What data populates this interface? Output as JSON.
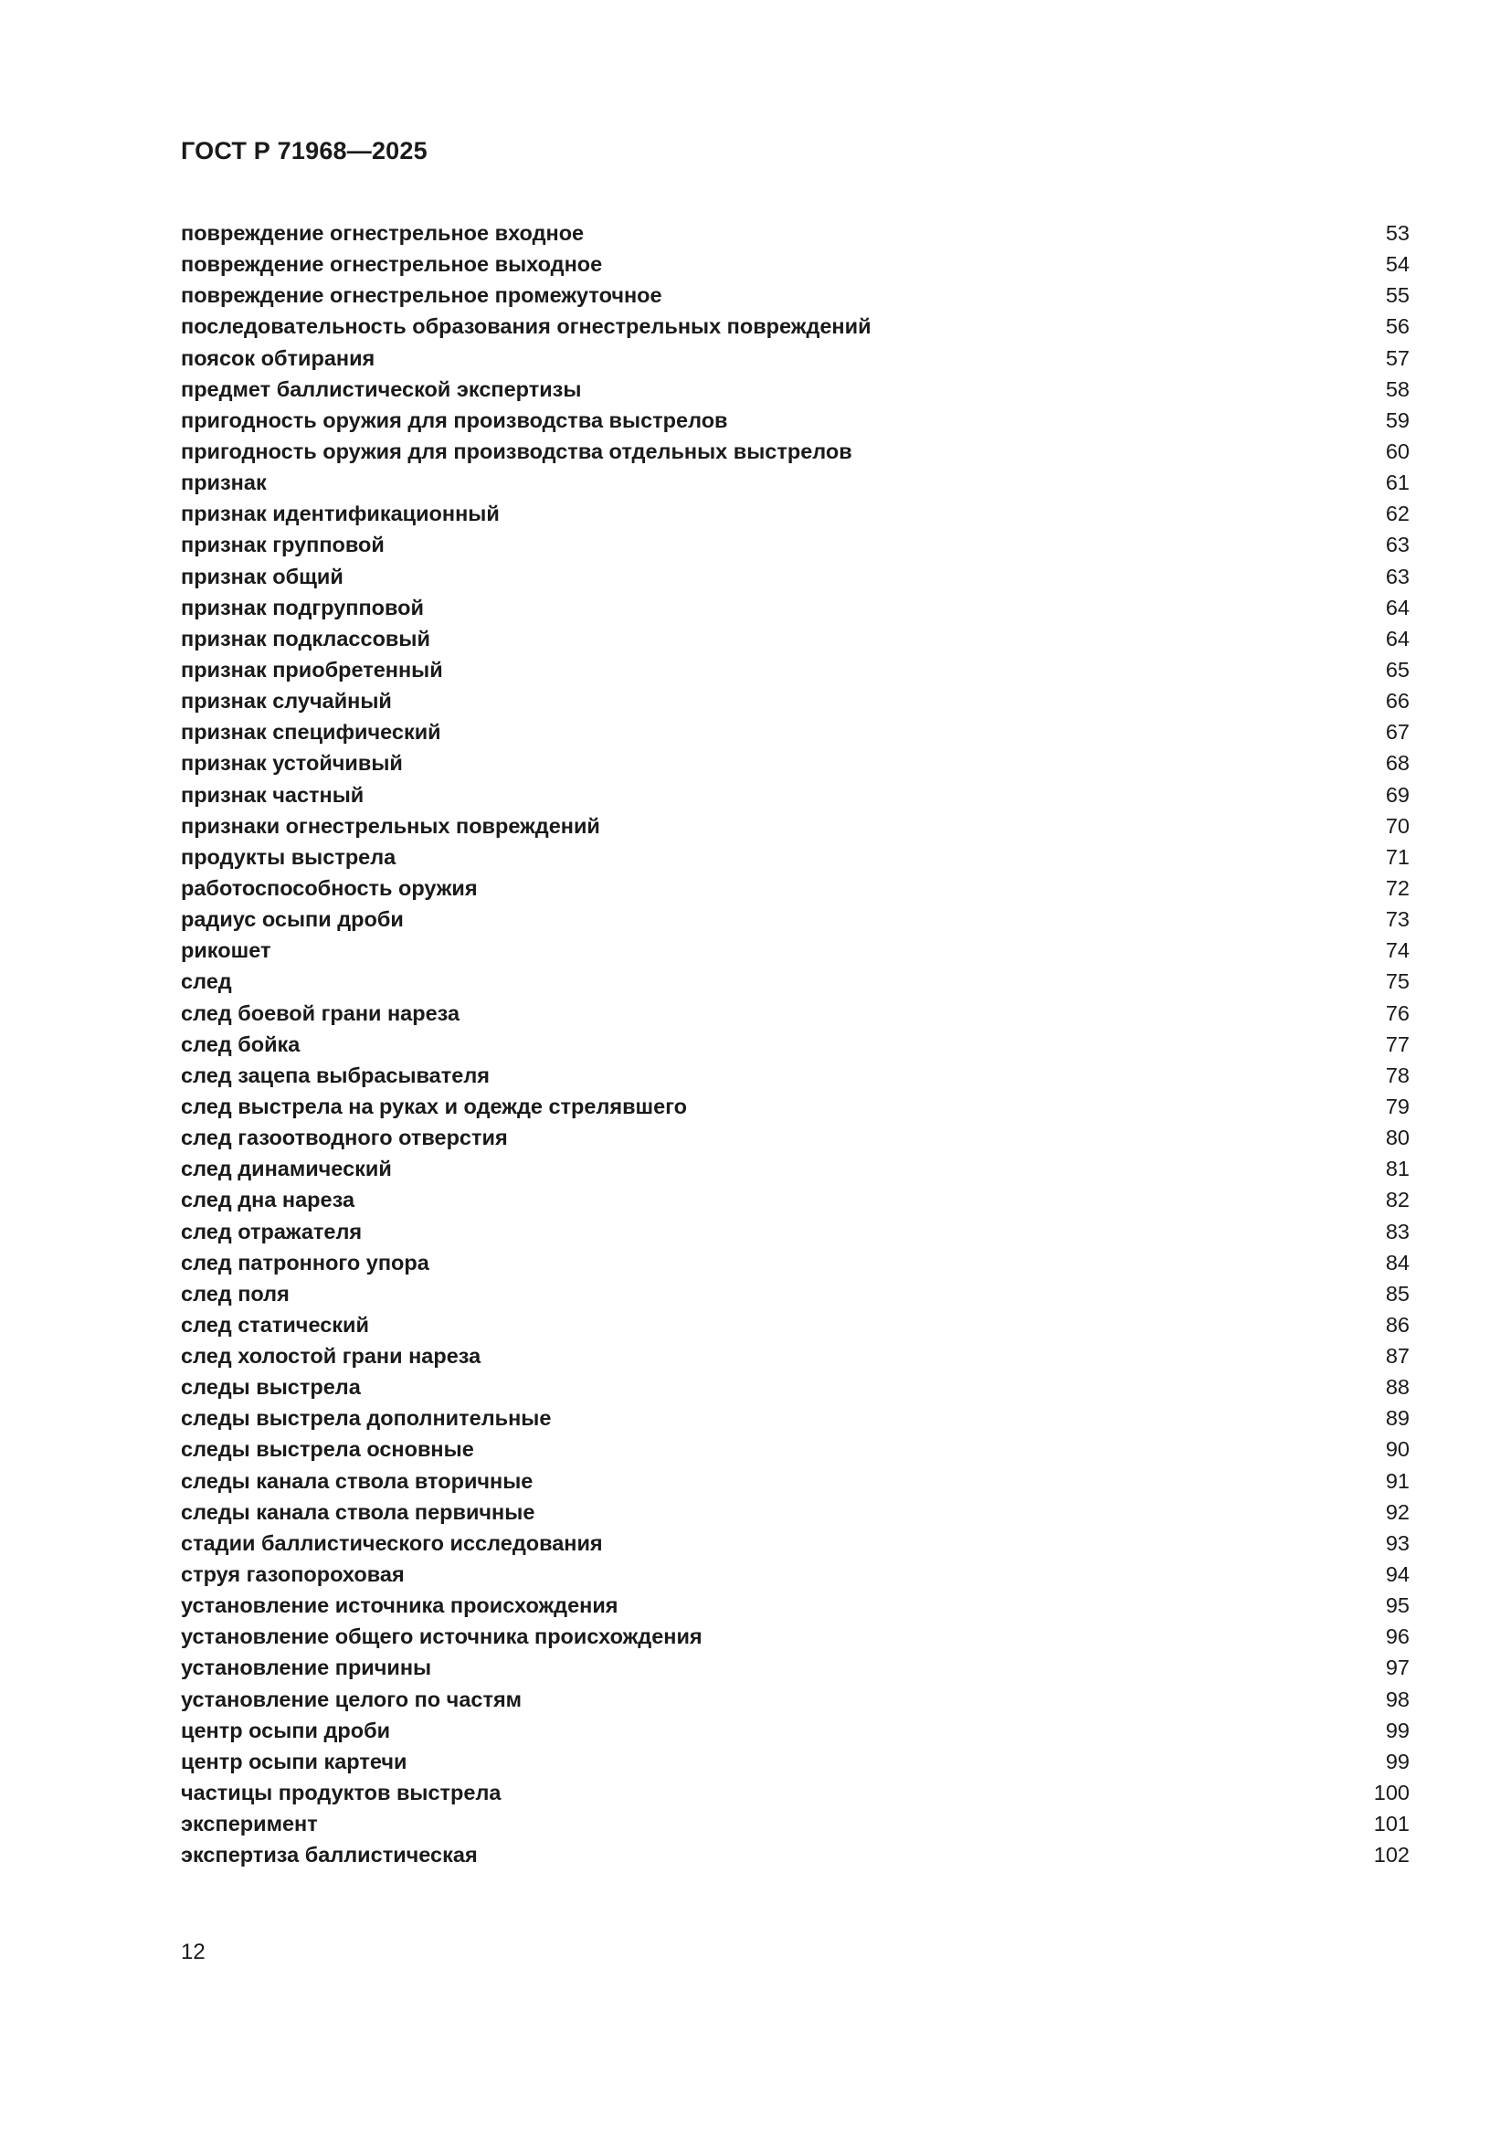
{
  "header": {
    "title": "ГОСТ Р 71968—2025"
  },
  "entries": [
    {
      "term": "повреждение огнестрельное входное",
      "page": "53"
    },
    {
      "term": "повреждение огнестрельное выходное",
      "page": "54"
    },
    {
      "term": "повреждение огнестрельное промежуточное",
      "page": "55"
    },
    {
      "term": "последовательность образования огнестрельных повреждений",
      "page": "56"
    },
    {
      "term": "поясок обтирания",
      "page": "57"
    },
    {
      "term": "предмет баллистической экспертизы",
      "page": "58"
    },
    {
      "term": "пригодность оружия для производства выстрелов",
      "page": "59"
    },
    {
      "term": "пригодность оружия для производства отдельных выстрелов",
      "page": "60"
    },
    {
      "term": "признак",
      "page": "61"
    },
    {
      "term": "признак идентификационный",
      "page": "62"
    },
    {
      "term": "признак групповой",
      "page": "63"
    },
    {
      "term": "признак общий",
      "page": "63"
    },
    {
      "term": "признак подгрупповой",
      "page": "64"
    },
    {
      "term": "признак подклассовый",
      "page": "64"
    },
    {
      "term": "признак приобретенный",
      "page": "65"
    },
    {
      "term": "признак случайный",
      "page": "66"
    },
    {
      "term": "признак специфический",
      "page": "67"
    },
    {
      "term": "признак устойчивый",
      "page": "68"
    },
    {
      "term": "признак частный",
      "page": "69"
    },
    {
      "term": "признаки огнестрельных повреждений",
      "page": "70"
    },
    {
      "term": "продукты выстрела",
      "page": "71"
    },
    {
      "term": "работоспособность оружия",
      "page": "72"
    },
    {
      "term": "радиус осыпи дроби",
      "page": "73"
    },
    {
      "term": "рикошет",
      "page": "74"
    },
    {
      "term": "след",
      "page": "75"
    },
    {
      "term": "след боевой грани нареза",
      "page": "76"
    },
    {
      "term": "след бойка",
      "page": "77"
    },
    {
      "term": "след зацепа выбрасывателя",
      "page": "78"
    },
    {
      "term": "след выстрела на руках и одежде стрелявшего",
      "page": "79"
    },
    {
      "term": "след газоотводного отверстия",
      "page": "80"
    },
    {
      "term": "след динамический",
      "page": "81"
    },
    {
      "term": "след дна нареза",
      "page": "82"
    },
    {
      "term": "след отражателя",
      "page": "83"
    },
    {
      "term": "след патронного упора",
      "page": "84"
    },
    {
      "term": "след поля",
      "page": "85"
    },
    {
      "term": "след статический",
      "page": "86"
    },
    {
      "term": "след холостой грани нареза",
      "page": "87"
    },
    {
      "term": "следы выстрела",
      "page": "88"
    },
    {
      "term": "следы выстрела дополнительные",
      "page": "89"
    },
    {
      "term": "следы выстрела основные",
      "page": "90"
    },
    {
      "term": "следы канала ствола вторичные",
      "page": "91"
    },
    {
      "term": "следы канала ствола первичные",
      "page": "92"
    },
    {
      "term": "стадии баллистического исследования",
      "page": "93"
    },
    {
      "term": "струя газопороховая",
      "page": "94"
    },
    {
      "term": "установление источника происхождения",
      "page": "95"
    },
    {
      "term": "установление общего источника происхождения",
      "page": "96"
    },
    {
      "term": "установление причины",
      "page": "97"
    },
    {
      "term": "установление целого по частям",
      "page": "98"
    },
    {
      "term": "центр осыпи дроби",
      "page": "99"
    },
    {
      "term": "центр осыпи картечи",
      "page": "99"
    },
    {
      "term": "частицы продуктов выстрела",
      "page": "100"
    },
    {
      "term": "эксперимент",
      "page": "101"
    },
    {
      "term": "экспертиза баллистическая",
      "page": "102"
    }
  ],
  "footer": {
    "page_number": "12"
  }
}
